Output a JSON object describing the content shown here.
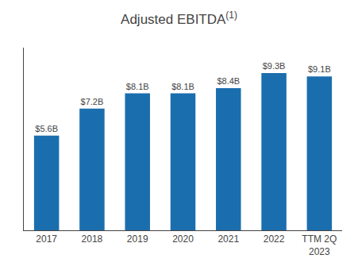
{
  "chart_data": {
    "type": "bar",
    "title": "Adjusted EBITDA",
    "annotations": [
      "(1)"
    ],
    "categories": [
      "2017",
      "2018",
      "2019",
      "2020",
      "2021",
      "2022",
      "TTM 2Q\n2023"
    ],
    "values": [
      5.6,
      7.2,
      8.1,
      8.1,
      8.4,
      9.3,
      9.1
    ],
    "value_labels": [
      "$5.6B",
      "$7.2B",
      "$8.1B",
      "$8.1B",
      "$8.4B",
      "$9.3B",
      "$9.1B"
    ],
    "data_labels": true,
    "color": "#1B6EAE",
    "ylim": [
      0,
      10.8
    ],
    "tick_labels": "x",
    "grid": false
  }
}
